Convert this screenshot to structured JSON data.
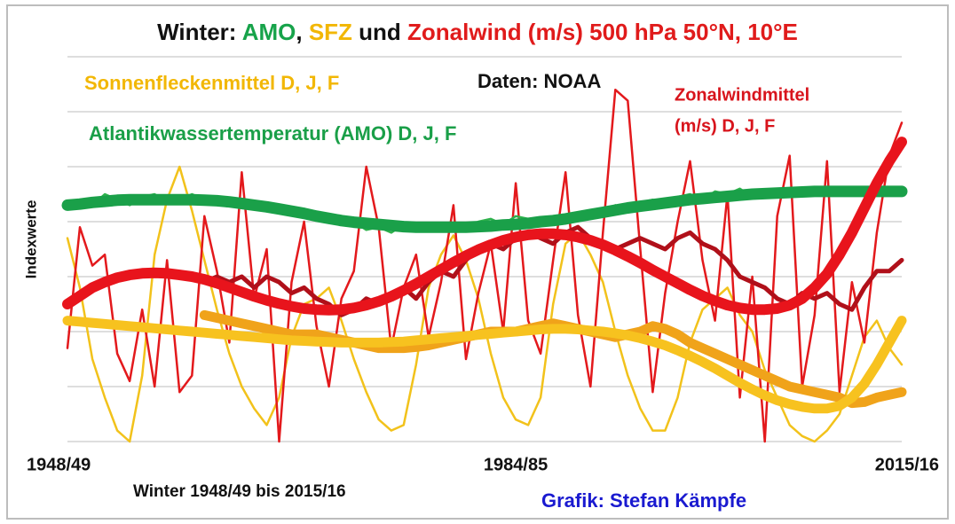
{
  "chart_data": {
    "type": "line",
    "title_parts": [
      {
        "text": "Winter: ",
        "color": "#111111"
      },
      {
        "text": "AMO",
        "color": "#17a34a"
      },
      {
        "text": ", ",
        "color": "#111111"
      },
      {
        "text": "SFZ",
        "color": "#f2b705"
      },
      {
        "text": " und ",
        "color": "#111111"
      },
      {
        "text": "Zonalwind (m/s) 500 hPa 50°N, 10°E",
        "color": "#e01b1b"
      }
    ],
    "annotations": [
      {
        "text": "Sonnenfleckenmittel D, J, F",
        "color": "#f2b705"
      },
      {
        "text": "Daten: NOAA",
        "color": "#111111"
      },
      {
        "text": "Zonalwindmittel",
        "color": "#d8141c"
      },
      {
        "text": "(m/s) D, J, F",
        "color": "#d8141c"
      },
      {
        "text": "Atlantikwassertemperatur (AMO) D, J, F",
        "color": "#1a9f48"
      }
    ],
    "y_label": "Indexwerte",
    "x_label": "Winter 1948/49 bis 2015/16",
    "credit": "Grafik: Stefan Kämpfe",
    "categories": [
      "1948/49",
      null,
      null,
      null,
      null,
      null,
      null,
      null,
      null,
      null,
      null,
      null,
      null,
      null,
      null,
      null,
      null,
      null,
      null,
      null,
      null,
      null,
      null,
      null,
      null,
      null,
      null,
      null,
      null,
      null,
      null,
      null,
      null,
      null,
      null,
      null,
      "1984/85",
      null,
      null,
      null,
      null,
      null,
      null,
      null,
      null,
      null,
      null,
      null,
      null,
      null,
      null,
      null,
      null,
      null,
      null,
      null,
      null,
      null,
      null,
      null,
      null,
      null,
      null,
      null,
      null,
      null,
      null,
      "2015/16"
    ],
    "ylim": [
      0,
      7
    ],
    "yticks": [
      0,
      1,
      2,
      3,
      4,
      5,
      6,
      7
    ],
    "grid": true,
    "series": [
      {
        "color": "#f2c21b",
        "values": [
          3.7,
          2.8,
          1.5,
          0.8,
          0.2,
          0,
          1.2,
          3.4,
          4.4,
          5.0,
          4.2,
          3.3,
          2.4,
          1.6,
          1,
          0.6,
          0.3,
          0.8,
          1.9,
          2.5,
          2.6,
          2.8,
          2.2,
          1.5,
          0.9,
          0.4,
          0.2,
          0.3,
          1.4,
          2.8,
          3.4,
          3.75,
          3.3,
          2.6,
          1.6,
          0.8,
          0.4,
          0.3,
          0.8,
          2.5,
          3.6,
          3.8,
          3.4,
          2.9,
          2.0,
          1.2,
          0.6,
          0.2,
          0.2,
          0.8,
          1.8,
          2.4,
          2.6,
          2.8,
          2.3,
          2.0,
          1.3,
          0.8,
          0.3,
          0.1,
          0,
          0.2,
          0.5,
          1.2,
          1.9,
          2.2,
          1.7,
          1.4
        ]
      },
      {
        "color": "#e3191c",
        "values": [
          1.7,
          3.9,
          3.2,
          3.4,
          1.6,
          1.1,
          2.4,
          1.0,
          3.3,
          0.9,
          1.2,
          4.1,
          3.1,
          1.8,
          4.9,
          2.6,
          3.5,
          0.0,
          2.9,
          4.0,
          2.1,
          1.0,
          2.6,
          3.1,
          5.0,
          3.9,
          1.7,
          2.8,
          3.4,
          1.9,
          2.9,
          4.3,
          1.5,
          2.7,
          3.6,
          2.0,
          4.7,
          2.2,
          1.6,
          3.3,
          4.9,
          2.3,
          1.0,
          3.8,
          6.4,
          6.2,
          3.5,
          0.9,
          2.7,
          4.0,
          5.1,
          3.3,
          2.2,
          4.5,
          0.8,
          3.0,
          0.0,
          4.1,
          5.2,
          1.0,
          2.3,
          5.1,
          0.9,
          2.9,
          1.8,
          3.8,
          5.2,
          5.8
        ]
      },
      {
        "color": "#2fb24c",
        "values": [
          4.3,
          4.4,
          4.3,
          4.5,
          4.4,
          4.3,
          4.45,
          4.5,
          4.35,
          4.4,
          4.5,
          4.4,
          4.35,
          4.3,
          4.4,
          4.3,
          4.2,
          4.3,
          4.15,
          4.1,
          4.15,
          4.0,
          3.95,
          4.0,
          3.85,
          3.9,
          3.8,
          3.95,
          3.85,
          3.9,
          3.95,
          3.85,
          3.9,
          4.0,
          4.05,
          3.95,
          4.1,
          4.05,
          3.95,
          4.0,
          4.1,
          4.05,
          4.2,
          4.15,
          4.3,
          4.2,
          4.35,
          4.4,
          4.3,
          4.45,
          4.5,
          4.4,
          4.55,
          4.5,
          4.6,
          4.45,
          4.55,
          4.6,
          4.5,
          4.55,
          4.6,
          4.5,
          4.55,
          4.6,
          4.5,
          4.55,
          4.6,
          4.55
        ]
      },
      {
        "color": "#1aa049",
        "values": [
          4.3,
          4.32,
          4.35,
          4.37,
          4.39,
          4.4,
          4.4,
          4.4,
          4.4,
          4.4,
          4.4,
          4.39,
          4.38,
          4.36,
          4.33,
          4.3,
          4.27,
          4.23,
          4.19,
          4.15,
          4.1,
          4.06,
          4.02,
          3.99,
          3.97,
          3.95,
          3.93,
          3.91,
          3.9,
          3.9,
          3.9,
          3.9,
          3.9,
          3.91,
          3.92,
          3.94,
          3.95,
          3.97,
          4,
          4.02,
          4.05,
          4.09,
          4.13,
          4.17,
          4.21,
          4.25,
          4.28,
          4.31,
          4.34,
          4.37,
          4.4,
          4.42,
          4.44,
          4.46,
          4.48,
          4.5,
          4.51,
          4.52,
          4.53,
          4.54,
          4.55,
          4.55,
          4.55,
          4.55,
          4.55,
          4.55,
          4.55,
          4.55
        ]
      },
      {
        "color": "#f0a31a",
        "values": [
          null,
          null,
          null,
          null,
          null,
          null,
          null,
          null,
          null,
          null,
          null,
          2.3,
          2.25,
          2.2,
          2.15,
          2.1,
          2.05,
          2.0,
          1.95,
          1.95,
          1.95,
          1.9,
          1.85,
          1.8,
          1.75,
          1.7,
          1.7,
          1.7,
          1.72,
          1.75,
          1.8,
          1.85,
          1.9,
          1.95,
          2.0,
          2.0,
          2.0,
          2.05,
          2.1,
          2.15,
          2.1,
          2.05,
          2.0,
          1.95,
          1.9,
          1.95,
          2.0,
          2.1,
          2.05,
          1.95,
          1.8,
          1.7,
          1.6,
          1.5,
          1.4,
          1.3,
          1.2,
          1.1,
          1.0,
          0.95,
          0.9,
          0.85,
          0.8,
          0.7,
          0.72,
          0.8,
          0.85,
          0.9
        ]
      },
      {
        "color": "#f7c21f",
        "values": [
          2.2,
          2.18,
          2.16,
          2.14,
          2.12,
          2.1,
          2.08,
          2.06,
          2.04,
          2.02,
          2.0,
          1.98,
          1.96,
          1.94,
          1.92,
          1.9,
          1.88,
          1.86,
          1.84,
          1.83,
          1.82,
          1.81,
          1.8,
          1.8,
          1.8,
          1.8,
          1.81,
          1.82,
          1.84,
          1.86,
          1.88,
          1.9,
          1.92,
          1.94,
          1.96,
          1.98,
          2.0,
          2.02,
          2.04,
          2.05,
          2.05,
          2.04,
          2.02,
          2.0,
          1.97,
          1.93,
          1.88,
          1.82,
          1.75,
          1.66,
          1.56,
          1.45,
          1.33,
          1.2,
          1.07,
          0.95,
          0.84,
          0.75,
          0.68,
          0.63,
          0.6,
          0.6,
          0.65,
          0.8,
          1.05,
          1.4,
          1.8,
          2.2
        ]
      },
      {
        "color": "#b0101a",
        "values": [
          null,
          null,
          null,
          null,
          null,
          null,
          null,
          null,
          null,
          null,
          null,
          2.9,
          3.0,
          2.9,
          3.0,
          2.8,
          3.0,
          2.9,
          2.7,
          2.8,
          2.6,
          2.5,
          2.3,
          2.4,
          2.6,
          2.5,
          2.7,
          2.8,
          2.6,
          2.9,
          3.1,
          3.0,
          3.3,
          3.5,
          3.6,
          3.5,
          3.7,
          3.8,
          3.7,
          3.6,
          3.8,
          3.9,
          3.7,
          3.6,
          3.5,
          3.6,
          3.7,
          3.6,
          3.5,
          3.7,
          3.8,
          3.6,
          3.5,
          3.3,
          3.0,
          2.9,
          2.8,
          2.6,
          2.5,
          2.7,
          2.6,
          2.7,
          2.5,
          2.4,
          2.8,
          3.1,
          3.1,
          3.3
        ]
      },
      {
        "color": "#e8141c",
        "values": [
          2.5,
          2.65,
          2.8,
          2.9,
          2.98,
          3.03,
          3.06,
          3.07,
          3.06,
          3.03,
          3.0,
          2.95,
          2.88,
          2.8,
          2.72,
          2.64,
          2.57,
          2.51,
          2.46,
          2.42,
          2.4,
          2.39,
          2.4,
          2.43,
          2.48,
          2.55,
          2.64,
          2.75,
          2.87,
          3.0,
          3.13,
          3.26,
          3.38,
          3.49,
          3.58,
          3.66,
          3.72,
          3.76,
          3.78,
          3.78,
          3.76,
          3.72,
          3.66,
          3.58,
          3.48,
          3.37,
          3.25,
          3.12,
          3.0,
          2.88,
          2.76,
          2.65,
          2.56,
          2.48,
          2.43,
          2.4,
          2.4,
          2.42,
          2.48,
          2.6,
          2.8,
          3.05,
          3.4,
          3.8,
          4.25,
          4.7,
          5.1,
          5.45
        ]
      }
    ]
  }
}
